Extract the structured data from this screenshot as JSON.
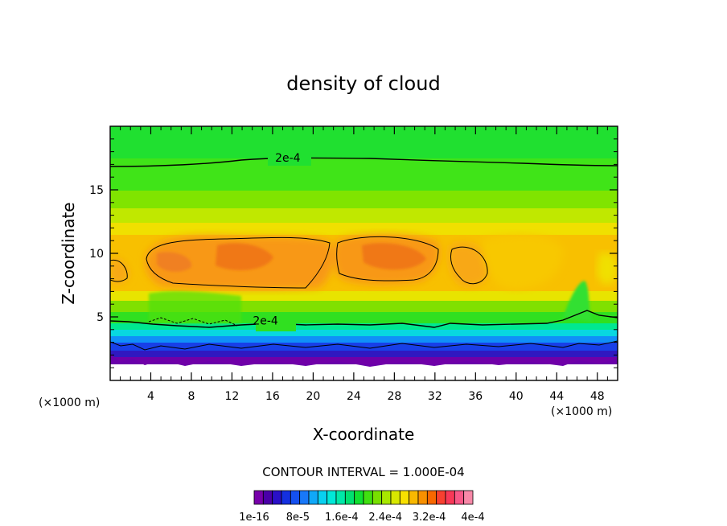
{
  "chart_data": {
    "type": "heatmap",
    "title": "density of cloud",
    "xlabel": "X-coordinate",
    "ylabel": "Z-coordinate",
    "x_unit_left": "(×1000 m)",
    "x_unit_right": "(×1000 m)",
    "xlim": [
      0,
      50
    ],
    "ylim": [
      0,
      20
    ],
    "x_ticks": [
      4,
      8,
      12,
      16,
      20,
      24,
      28,
      32,
      36,
      40,
      44,
      48
    ],
    "x_tick_labels": [
      "4",
      "8",
      "12",
      "16",
      "20",
      "24",
      "28",
      "32",
      "36",
      "40",
      "44",
      "48"
    ],
    "y_ticks": [
      5,
      10,
      15
    ],
    "y_tick_labels": [
      "5",
      "10",
      "15"
    ],
    "contour_interval_text": "CONTOUR INTERVAL = 1.000E-04",
    "contour_labels": [
      {
        "text": "2e-4",
        "x": 17.5,
        "z": 17.2
      },
      {
        "text": "2e-4",
        "x": 15.3,
        "z": 4.4
      }
    ],
    "colorbar": {
      "colors": [
        "#7700aa",
        "#4a00a8",
        "#2a10c8",
        "#1430e0",
        "#1450f0",
        "#1878f8",
        "#10a8f8",
        "#08d0f0",
        "#00e8d8",
        "#00e8a8",
        "#00e070",
        "#10e030",
        "#40e010",
        "#78e000",
        "#a8e800",
        "#d8e800",
        "#f8e000",
        "#f8b800",
        "#f89000",
        "#f86800",
        "#f84030",
        "#f83858",
        "#f85888",
        "#f888a8"
      ],
      "tick_labels": [
        "1e-16",
        "8e-5",
        "1.6e-4",
        "2.4e-4",
        "3.2e-4",
        "4e-4"
      ]
    }
  }
}
